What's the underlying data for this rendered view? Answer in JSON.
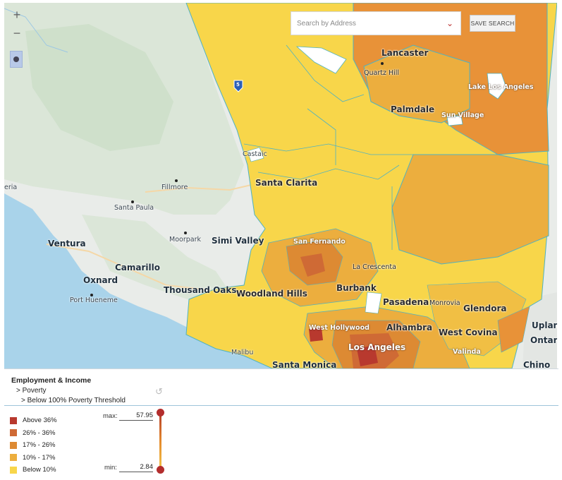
{
  "map": {
    "controls": {
      "zoom_in": "+",
      "zoom_out": "−"
    },
    "search": {
      "placeholder": "Search by Address"
    },
    "save_search_label": "SAVE SEARCH",
    "highway_shield": "5",
    "places": {
      "lancaster": "Lancaster",
      "quartz_hill": "Quartz Hill",
      "lake_los_angeles": "Lake Los Angeles",
      "palmdale": "Palmdale",
      "sun_village": "Sun Village",
      "castaic": "Castaic",
      "santa_clarita": "Santa Clarita",
      "fillmore": "Fillmore",
      "santa_paula": "Santa Paula",
      "ventura": "Ventura",
      "moorpark": "Moorpark",
      "simi_valley": "Simi Valley",
      "san_fernando": "San Fernando",
      "camarillo": "Camarillo",
      "oxnard": "Oxnard",
      "port_hueneme": "Port Hueneme",
      "thousand_oaks": "Thousand Oaks",
      "woodland_hills": "Woodland Hills",
      "la_crescenta": "La Crescenta",
      "burbank": "Burbank",
      "pasadena": "Pasadena",
      "monrovia": "Monrovia",
      "glendora": "Glendora",
      "west_hollywood": "West Hollywood",
      "alhambra": "Alhambra",
      "west_covina": "West Covina",
      "upland": "Uplan",
      "ontario": "Ontari",
      "los_angeles": "Los Angeles",
      "valinda": "Valinda",
      "malibu": "Malibu",
      "santa_monica": "Santa Monica",
      "chino": "Chino",
      "edge_left": "eria"
    }
  },
  "panel": {
    "category": "Employment & Income",
    "sub1": "> Poverty",
    "sub2": "> Below 100% Poverty Threshold",
    "legend": [
      {
        "label": "Above 36%",
        "color": "#b8392e"
      },
      {
        "label": "26% - 36%",
        "color": "#cf6a35"
      },
      {
        "label": "17% - 26%",
        "color": "#dd8a33"
      },
      {
        "label": "10% - 17%",
        "color": "#ecae3e"
      },
      {
        "label": "Below 10%",
        "color": "#f8d64a"
      }
    ],
    "max_label": "max:",
    "max_value": "57.95",
    "min_label": "min:",
    "min_value": "2.84"
  }
}
